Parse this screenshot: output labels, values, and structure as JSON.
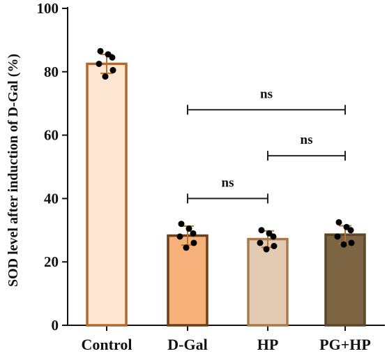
{
  "chart_data": {
    "type": "bar",
    "title": "",
    "xlabel": "",
    "ylabel": "SOD level after induction of D-Gal (%)",
    "ylim": [
      0,
      100
    ],
    "yticks": [
      0,
      20,
      40,
      60,
      80,
      100
    ],
    "categories": [
      "Control",
      "D-Gal",
      "HP",
      "PG+HP"
    ],
    "values": [
      82.5,
      28.3,
      27.2,
      28.6
    ],
    "errors": [
      3.0,
      3.0,
      2.6,
      2.8
    ],
    "points": [
      [
        86.5,
        85.5,
        84.5,
        82.5,
        80.5,
        78.5
      ],
      [
        32.0,
        30.5,
        29.0,
        28.0,
        26.0,
        24.5
      ],
      [
        30.0,
        29.0,
        28.0,
        26.0,
        25.0,
        24.0
      ],
      [
        32.5,
        31.0,
        30.0,
        28.0,
        26.0,
        25.5
      ]
    ],
    "bar_fill_colors": [
      "#fde7d2",
      "#f5b179",
      "#e2cbb2",
      "#7d6543"
    ],
    "bar_edge_colors": [
      "#b4692c",
      "#6b3f18",
      "#a97b4a",
      "#5b4828"
    ],
    "errorbar_color": "#b3762f",
    "point_color": "#000000",
    "comparisons": [
      {
        "from": "D-Gal",
        "to": "PG+HP",
        "y": 68,
        "label": "ns"
      },
      {
        "from": "HP",
        "to": "PG+HP",
        "y": 53.5,
        "label": "ns"
      },
      {
        "from": "D-Gal",
        "to": "HP",
        "y": 40,
        "label": "ns"
      }
    ],
    "grid": false,
    "legend": "none"
  }
}
